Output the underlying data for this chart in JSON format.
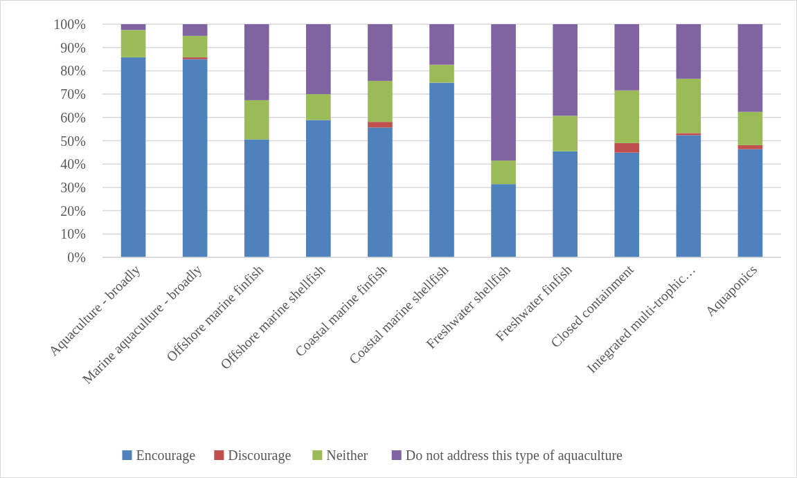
{
  "chart_data": {
    "type": "bar",
    "stacked": true,
    "categories": [
      "Aquaculture - broadly",
      "Marine aquaculture - broadly",
      "Offshore marine finfish",
      "Offshore marine shellfish",
      "Coastal marine finfish",
      "Coastal marine shellfish",
      "Freshwater shellfish",
      "Freshwater finfish",
      "Closed containment",
      "Integrated multi-trophic…",
      "Aquaponics"
    ],
    "series": [
      {
        "name": "Encourage",
        "color": "#4f81bd",
        "values": [
          85.8,
          85,
          50.6,
          58.9,
          55.7,
          74.9,
          31.4,
          45.5,
          44.9,
          52.4,
          46.4
        ]
      },
      {
        "name": "Discourage",
        "color": "#c0504d",
        "values": [
          0,
          0.8,
          0,
          0,
          2.4,
          0,
          0,
          0,
          4.1,
          0.9,
          1.7
        ]
      },
      {
        "name": "Neither",
        "color": "#9bbb59",
        "values": [
          11.7,
          9.2,
          16.8,
          11.1,
          17.6,
          7.7,
          10.1,
          15.2,
          22.6,
          23.3,
          14.3
        ]
      },
      {
        "name": "Do not address this type of aquaculture",
        "color": "#8064a2",
        "values": [
          2.5,
          5,
          32.6,
          30,
          24.3,
          17.4,
          58.5,
          39.3,
          28.4,
          23.4,
          37.6
        ]
      }
    ],
    "ylim": [
      0,
      100
    ],
    "yticks": [
      {
        "value": 0,
        "label": "0%"
      },
      {
        "value": 10,
        "label": "10%"
      },
      {
        "value": 20,
        "label": "20%"
      },
      {
        "value": 30,
        "label": "30%"
      },
      {
        "value": 40,
        "label": "40%"
      },
      {
        "value": 50,
        "label": "50%"
      },
      {
        "value": 60,
        "label": "60%"
      },
      {
        "value": 70,
        "label": "70%"
      },
      {
        "value": 80,
        "label": "80%"
      },
      {
        "value": 90,
        "label": "90%"
      },
      {
        "value": 100,
        "label": "100%"
      }
    ],
    "grid": "y",
    "legend": "bottom"
  }
}
